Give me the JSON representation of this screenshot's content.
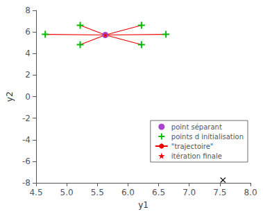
{
  "chart_data": {
    "type": "scatter",
    "xlabel": "y1",
    "ylabel": "y2",
    "xlim": [
      4.5,
      8.0
    ],
    "ylim": [
      -8,
      8
    ],
    "xticks": [
      4.5,
      {
        "value": 5.0,
        "label": "5.0"
      },
      5.5,
      {
        "value": 6.0,
        "label": "6.0"
      },
      6.5,
      {
        "value": 7.0,
        "label": "7.0"
      },
      7.5,
      {
        "value": 8.0,
        "label": "8.0"
      }
    ],
    "yticks": [
      -8,
      -6,
      -4,
      -2,
      0,
      2,
      4,
      6,
      8
    ],
    "grid": false,
    "legend": "lower right",
    "series": [
      {
        "name": "point séparant",
        "type": "scatter",
        "marker": "circle",
        "color": "#aa44cc",
        "x": [
          5.63
        ],
        "values": [
          5.72
        ]
      },
      {
        "name": "points d initialisation",
        "type": "scatter",
        "marker": "plus",
        "color": "#00bb00",
        "x": [
          4.65,
          5.22,
          5.22,
          6.22,
          6.22,
          6.62
        ],
        "values": [
          5.78,
          6.62,
          4.82,
          6.62,
          4.82,
          5.78
        ]
      },
      {
        "name": "\"trajectoire\"",
        "type": "line",
        "color": "#ee0000",
        "segments": [
          [
            [
              4.65,
              5.78
            ],
            [
              5.63,
              5.72
            ]
          ],
          [
            [
              5.22,
              6.62
            ],
            [
              5.63,
              5.72
            ]
          ],
          [
            [
              5.22,
              4.82
            ],
            [
              5.63,
              5.72
            ]
          ],
          [
            [
              5.63,
              5.72
            ],
            [
              6.22,
              6.62
            ]
          ],
          [
            [
              5.63,
              5.72
            ],
            [
              6.22,
              4.82
            ]
          ],
          [
            [
              5.63,
              5.72
            ],
            [
              6.62,
              5.78
            ]
          ]
        ]
      },
      {
        "name": "itération finale",
        "type": "scatter",
        "marker": "star",
        "color": "#ee0000",
        "x": [
          5.63
        ],
        "values": [
          5.72
        ]
      },
      {
        "type": "scatter",
        "marker": "x",
        "color": "#000000",
        "x": [
          7.55
        ],
        "values": [
          -7.75
        ]
      }
    ]
  }
}
